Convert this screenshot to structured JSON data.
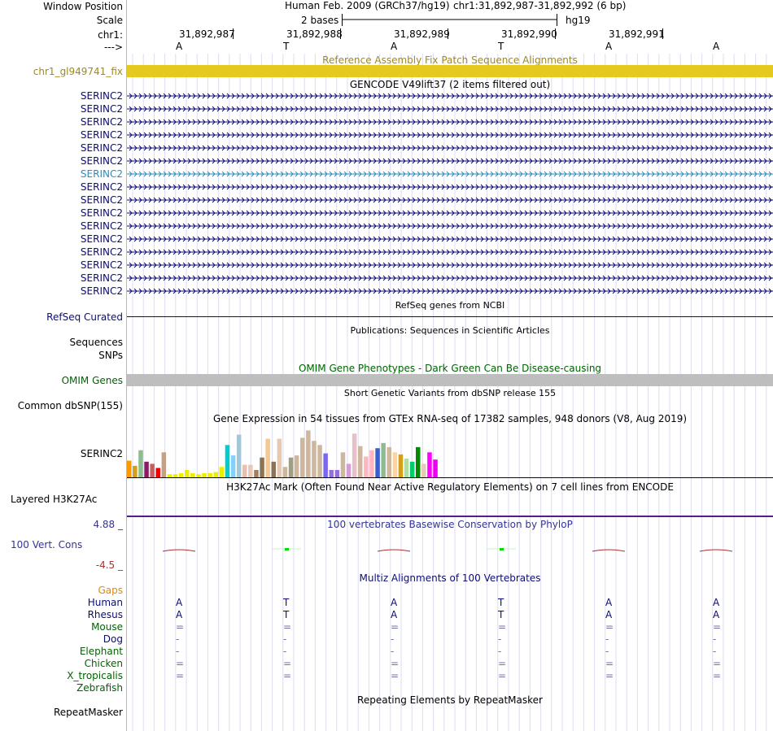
{
  "header": {
    "window_position_label": "Window Position",
    "scale_label": "Scale",
    "chrom_label": "chr1:",
    "strand_label": "--->",
    "assembly_text": "Human Feb. 2009 (GRCh37/hg19)",
    "position_text": "chr1:31,892,987-31,892,992 (6 bp)",
    "scale_text": "2 bases",
    "db_text": "hg19",
    "ruler_positions": [
      "31,892,987",
      "31,892,988",
      "31,892,989",
      "31,892,990",
      "31,892,991"
    ],
    "bases": [
      "A",
      "T",
      "A",
      "T",
      "A",
      "A"
    ]
  },
  "fix_track": {
    "title": "Reference Assembly Fix Patch Sequence Alignments",
    "label": "chr1_gl949741_fix",
    "color": "#e6c91e"
  },
  "gencode": {
    "title": "GENCODE V49lift37 (2 items filtered out)",
    "genes": [
      "SERINC2",
      "SERINC2",
      "SERINC2",
      "SERINC2",
      "SERINC2",
      "SERINC2",
      "SERINC2",
      "SERINC2",
      "SERINC2",
      "SERINC2",
      "SERINC2",
      "SERINC2",
      "SERINC2",
      "SERINC2",
      "SERINC2",
      "SERINC2"
    ],
    "highlighted_index": 6,
    "color": "#0c0c78",
    "highlight_color": "#2a8cbe"
  },
  "refseq": {
    "title": "RefSeq genes from NCBI",
    "label": "RefSeq Curated",
    "color": "#0c0c78"
  },
  "publications": {
    "title": "Publications: Sequences in Scientific Articles",
    "label_line1": "Sequences",
    "label_line2": "SNPs"
  },
  "omim": {
    "title": "OMIM Gene Phenotypes - Dark Green Can Be Disease-causing",
    "label": "OMIM Genes",
    "color": "#006400",
    "bar_color": "#bebebe"
  },
  "dbsnp": {
    "title": "Short Genetic Variants from dbSNP release 155",
    "label": "Common dbSNP(155)"
  },
  "gtex": {
    "title": "Gene Expression in 54 tissues from GTEx RNA-seq of 17382 samples, 948 donors (V8, Aug 2019)",
    "label": "SERINC2",
    "bars": [
      {
        "v": 0.32,
        "c": "#ff9900"
      },
      {
        "v": 0.22,
        "c": "#d4a017"
      },
      {
        "v": 0.52,
        "c": "#8fbc8f"
      },
      {
        "v": 0.3,
        "c": "#8b1c62"
      },
      {
        "v": 0.26,
        "c": "#cd5c5c"
      },
      {
        "v": 0.18,
        "c": "#ee0000"
      },
      {
        "v": 0.48,
        "c": "#c8a080"
      },
      {
        "v": 0.06,
        "c": "#eeee00"
      },
      {
        "v": 0.06,
        "c": "#eeee00"
      },
      {
        "v": 0.08,
        "c": "#eeee00"
      },
      {
        "v": 0.14,
        "c": "#eeee00"
      },
      {
        "v": 0.08,
        "c": "#eeee00"
      },
      {
        "v": 0.06,
        "c": "#eeee00"
      },
      {
        "v": 0.08,
        "c": "#eeee00"
      },
      {
        "v": 0.08,
        "c": "#eeee00"
      },
      {
        "v": 0.1,
        "c": "#eeee00"
      },
      {
        "v": 0.2,
        "c": "#eeee00"
      },
      {
        "v": 0.62,
        "c": "#00cdcd"
      },
      {
        "v": 0.42,
        "c": "#87cefa"
      },
      {
        "v": 0.82,
        "c": "#a0c8d8"
      },
      {
        "v": 0.24,
        "c": "#e8c0b0"
      },
      {
        "v": 0.24,
        "c": "#e8c8b8"
      },
      {
        "v": 0.14,
        "c": "#a08060"
      },
      {
        "v": 0.38,
        "c": "#8b7355"
      },
      {
        "v": 0.74,
        "c": "#f4c890"
      },
      {
        "v": 0.3,
        "c": "#8b7355"
      },
      {
        "v": 0.74,
        "c": "#e8c8b0"
      },
      {
        "v": 0.2,
        "c": "#cdb79e"
      },
      {
        "v": 0.38,
        "c": "#a0a080"
      },
      {
        "v": 0.42,
        "c": "#cdb79e"
      },
      {
        "v": 0.76,
        "c": "#cdb79e"
      },
      {
        "v": 0.9,
        "c": "#cdb79e"
      },
      {
        "v": 0.7,
        "c": "#cdb79e"
      },
      {
        "v": 0.62,
        "c": "#cdb79e"
      },
      {
        "v": 0.46,
        "c": "#7a67ee"
      },
      {
        "v": 0.14,
        "c": "#9370db"
      },
      {
        "v": 0.14,
        "c": "#9370db"
      },
      {
        "v": 0.48,
        "c": "#cdb79e"
      },
      {
        "v": 0.26,
        "c": "#d4a0d4"
      },
      {
        "v": 0.84,
        "c": "#e8c0c8"
      },
      {
        "v": 0.6,
        "c": "#cdb79e"
      },
      {
        "v": 0.4,
        "c": "#ffb6c1"
      },
      {
        "v": 0.52,
        "c": "#ffb6c1"
      },
      {
        "v": 0.56,
        "c": "#3a5fcd"
      },
      {
        "v": 0.66,
        "c": "#8fbc8f"
      },
      {
        "v": 0.58,
        "c": "#cdb79e"
      },
      {
        "v": 0.48,
        "c": "#ffd39b"
      },
      {
        "v": 0.44,
        "c": "#d4a017"
      },
      {
        "v": 0.36,
        "c": "#b0e0a0"
      },
      {
        "v": 0.3,
        "c": "#00cd66"
      },
      {
        "v": 0.58,
        "c": "#008b00"
      },
      {
        "v": 0.26,
        "c": "#e8c8b8"
      },
      {
        "v": 0.48,
        "c": "#ff00ff"
      },
      {
        "v": 0.34,
        "c": "#ee00ee"
      }
    ]
  },
  "h3k27ac": {
    "title": "H3K27Ac Mark (Often Found Near Active Regulatory Elements) on 7 cell lines from ENCODE",
    "label": "Layered H3K27Ac"
  },
  "phylop": {
    "title": "100 vertebrates Basewise Conservation by PhyloP",
    "label": "100 Vert. Cons",
    "top_value": "4.88 _",
    "bottom_value": "-4.5 _",
    "color": "#333399",
    "negative_color": "#b03030",
    "positive_color": "#00dd00"
  },
  "multiz": {
    "title": "Multiz Alignments of 100 Vertebrates",
    "gaps_label": "Gaps",
    "species": [
      {
        "name": "Human",
        "color": "#0c0c78",
        "bases": [
          "A",
          "T",
          "A",
          "T",
          "A",
          "A"
        ]
      },
      {
        "name": "Rhesus",
        "color": "#0c0c78",
        "bases": [
          "A",
          "T",
          "A",
          "T",
          "A",
          "A"
        ]
      },
      {
        "name": "Mouse",
        "color": "#006400",
        "bases": [
          "=",
          "=",
          "=",
          "=",
          "=",
          "="
        ]
      },
      {
        "name": "Dog",
        "color": "#0c0c78",
        "bases": [
          "-",
          "-",
          "-",
          "-",
          "-",
          "-"
        ]
      },
      {
        "name": "Elephant",
        "color": "#006400",
        "bases": [
          "-",
          "-",
          "-",
          "-",
          "-",
          "-"
        ]
      },
      {
        "name": "Chicken",
        "color": "#006400",
        "bases": [
          "=",
          "=",
          "=",
          "=",
          "=",
          "="
        ]
      },
      {
        "name": "X_tropicalis",
        "color": "#006400",
        "bases": [
          "=",
          "=",
          "=",
          "=",
          "=",
          "="
        ]
      },
      {
        "name": "Zebrafish",
        "color": "#006400",
        "bases": [
          "",
          "",
          "",
          "",
          "",
          ""
        ]
      }
    ]
  },
  "repeatmasker": {
    "title": "Repeating Elements by RepeatMasker",
    "label": "RepeatMasker"
  }
}
